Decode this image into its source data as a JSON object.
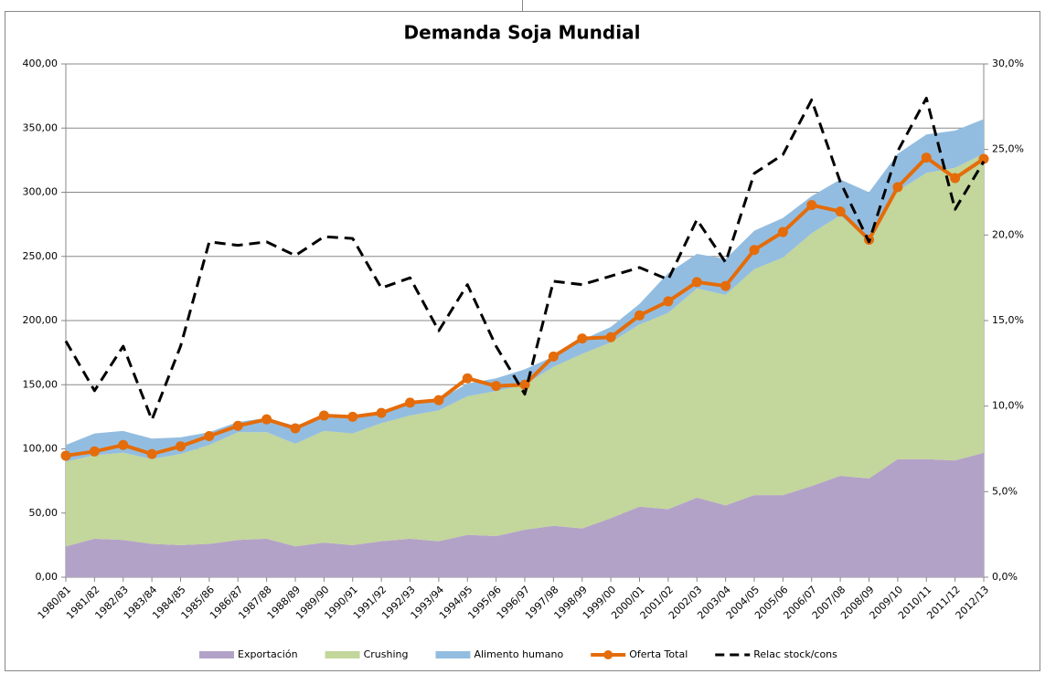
{
  "chart_data": {
    "type": "combo",
    "title": "Demanda Soja Mundial",
    "categories": [
      "1980/81",
      "1981/82",
      "1982/83",
      "1983/84",
      "1984/85",
      "1985/86",
      "1986/87",
      "1987/88",
      "1988/89",
      "1989/90",
      "1990/91",
      "1991/92",
      "1992/93",
      "1993/94",
      "1994/95",
      "1995/96",
      "1996/97",
      "1997/98",
      "1998/99",
      "1999/00",
      "2000/01",
      "2001/02",
      "2002/03",
      "2003/04",
      "2004/05",
      "2005/06",
      "2006/07",
      "2007/08",
      "2008/09",
      "2009/10",
      "2010/11",
      "2011/12",
      "2012/13"
    ],
    "series": [
      {
        "name": "Exportación",
        "type": "area",
        "stacked": true,
        "color": "#b3a2c7",
        "values": [
          24,
          30,
          29,
          26,
          25,
          26,
          29,
          30,
          24,
          27,
          25,
          28,
          30,
          28,
          33,
          32,
          37,
          40,
          38,
          46,
          55,
          53,
          62,
          56,
          64,
          64,
          71,
          79,
          77,
          92,
          92,
          91,
          97
        ]
      },
      {
        "name": "Crushing",
        "type": "area",
        "stacked": true,
        "color": "#c3d69b",
        "values": [
          66,
          65,
          68,
          66,
          71,
          77,
          84,
          83,
          80,
          87,
          87,
          92,
          96,
          102,
          108,
          113,
          113,
          124,
          136,
          137,
          142,
          153,
          163,
          164,
          176,
          185,
          197,
          203,
          185,
          209,
          223,
          228,
          233
        ]
      },
      {
        "name": "Alimento humano",
        "type": "area",
        "stacked": true,
        "color": "#93bde0",
        "values": [
          13,
          17,
          17,
          16,
          13,
          10,
          8,
          11,
          14,
          12,
          13,
          9,
          10,
          8,
          10,
          10,
          12,
          8,
          11,
          12,
          16,
          31,
          27,
          28,
          30,
          31,
          29,
          28,
          38,
          29,
          30,
          29,
          27
        ]
      },
      {
        "name": "Oferta Total",
        "type": "line",
        "markers": true,
        "color": "#e46c0a",
        "values": [
          94.7,
          98,
          103,
          96,
          102,
          110,
          118,
          123,
          116,
          126,
          125,
          128,
          136,
          138,
          155,
          149,
          150,
          172,
          186,
          187,
          204,
          215,
          230,
          227,
          255,
          269,
          290,
          285,
          263,
          304,
          327,
          311,
          326
        ]
      },
      {
        "name": "Relac stock/cons",
        "type": "line",
        "dashed": true,
        "axis": "y2",
        "color": "#000000",
        "values": [
          13.8,
          10.9,
          13.5,
          9.2,
          13.5,
          19.6,
          19.4,
          19.6,
          18.8,
          19.9,
          19.8,
          16.9,
          17.5,
          14.4,
          17.1,
          13.5,
          10.7,
          17.3,
          17.1,
          17.6,
          18.1,
          17.4,
          20.9,
          18.4,
          23.6,
          24.7,
          27.9,
          23.1,
          19.6,
          24.9,
          28.0,
          21.5,
          24.3
        ]
      }
    ],
    "ylim": [
      0,
      400
    ],
    "yticks": [
      {
        "value": 0,
        "label": "0,00"
      },
      {
        "value": 50,
        "label": "50,00"
      },
      {
        "value": 100,
        "label": "100,00"
      },
      {
        "value": 150,
        "label": "150,00"
      },
      {
        "value": 200,
        "label": "200,00"
      },
      {
        "value": 250,
        "label": "250,00"
      },
      {
        "value": 300,
        "label": "300,00"
      },
      {
        "value": 350,
        "label": "350,00"
      },
      {
        "value": 400,
        "label": "400,00"
      }
    ],
    "y2lim": [
      0,
      30
    ],
    "y2ticks": [
      {
        "value": 0,
        "label": "0,0%"
      },
      {
        "value": 5,
        "label": "5,0%"
      },
      {
        "value": 10,
        "label": "10,0%"
      },
      {
        "value": 15,
        "label": "15,0%"
      },
      {
        "value": 20,
        "label": "20,0%"
      },
      {
        "value": 25,
        "label": "25,0%"
      },
      {
        "value": 30,
        "label": "30,0%"
      }
    ],
    "grid": true,
    "legend": "bottom"
  }
}
